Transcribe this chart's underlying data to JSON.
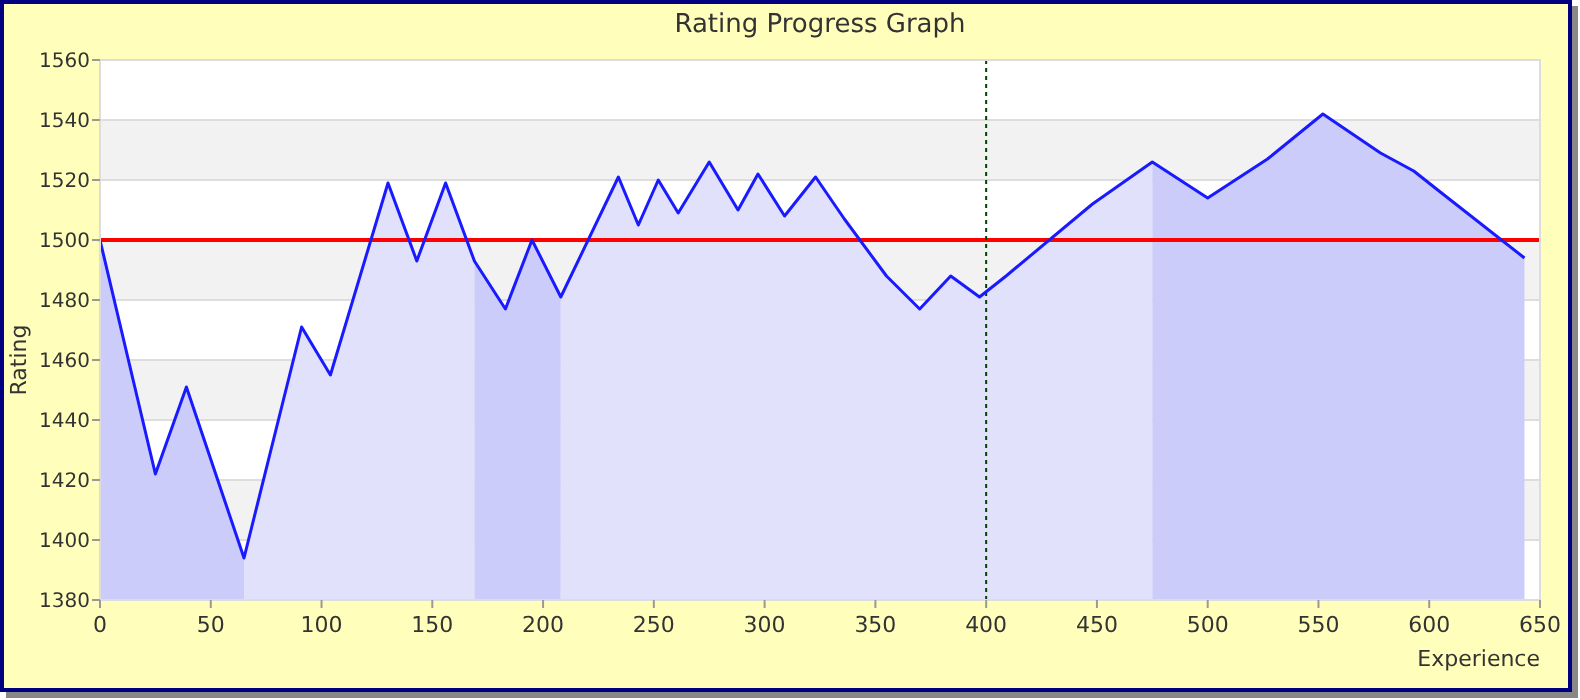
{
  "chart_data": {
    "type": "line",
    "title": "Rating Progress Graph",
    "xlabel": "Experience",
    "ylabel": "Rating",
    "xlim": [
      0,
      650
    ],
    "ylim": [
      1380,
      1560
    ],
    "xticks": [
      0,
      50,
      100,
      150,
      200,
      250,
      300,
      350,
      400,
      450,
      500,
      550,
      600,
      650
    ],
    "yticks": [
      1380,
      1400,
      1420,
      1440,
      1460,
      1480,
      1500,
      1520,
      1540,
      1560
    ],
    "grid": "y",
    "marker": "none",
    "ref_lines": [
      {
        "axis": "y",
        "value": 1500,
        "color": "#ff0000",
        "line_style": "solid"
      },
      {
        "axis": "x",
        "value": 400,
        "color": "#004400",
        "line_style": "dotted"
      }
    ],
    "series": [
      {
        "type": "area",
        "color": "#ccccfa",
        "x": [
          0,
          25,
          39,
          65
        ],
        "values": [
          1500,
          1422,
          1451,
          1394
        ]
      },
      {
        "type": "area",
        "color": "#e1e1fb",
        "x": [
          65,
          91,
          104,
          130,
          143,
          156,
          169
        ],
        "values": [
          1394,
          1471,
          1455,
          1519,
          1493,
          1519,
          1493
        ]
      },
      {
        "type": "area",
        "color": "#ccccfa",
        "x": [
          169,
          183,
          195,
          208
        ],
        "values": [
          1493,
          1477,
          1500,
          1481
        ]
      },
      {
        "type": "area",
        "color": "#e1e1fb",
        "x": [
          208,
          234,
          243,
          252,
          261,
          275,
          288,
          297,
          309,
          323,
          336,
          355,
          370,
          384,
          397,
          409,
          448,
          475
        ],
        "values": [
          1481,
          1521,
          1505,
          1520,
          1509,
          1526,
          1510,
          1522,
          1508,
          1521,
          1507,
          1488,
          1477,
          1488,
          1481,
          1488,
          1512,
          1526
        ]
      },
      {
        "type": "area",
        "color": "#ccccfa",
        "x": [
          475,
          500,
          527,
          552,
          578,
          593,
          605,
          643
        ],
        "values": [
          1526,
          1514,
          1527,
          1542,
          1529,
          1523,
          1516,
          1494
        ]
      },
      {
        "color": "#1a1aff",
        "x": [
          0,
          25,
          39,
          65,
          91,
          104,
          130,
          143,
          156,
          169,
          183,
          195,
          208,
          234,
          243,
          252,
          261,
          275,
          288,
          297,
          309,
          323,
          336,
          355,
          370,
          384,
          397,
          409,
          448,
          475,
          500,
          527,
          552,
          578,
          593,
          605,
          643
        ],
        "values": [
          1500,
          1422,
          1451,
          1394,
          1471,
          1455,
          1519,
          1493,
          1519,
          1493,
          1477,
          1500,
          1481,
          1521,
          1505,
          1520,
          1509,
          1526,
          1510,
          1522,
          1508,
          1521,
          1507,
          1488,
          1477,
          1488,
          1481,
          1488,
          1512,
          1526,
          1514,
          1527,
          1542,
          1529,
          1523,
          1516,
          1494
        ]
      }
    ]
  }
}
